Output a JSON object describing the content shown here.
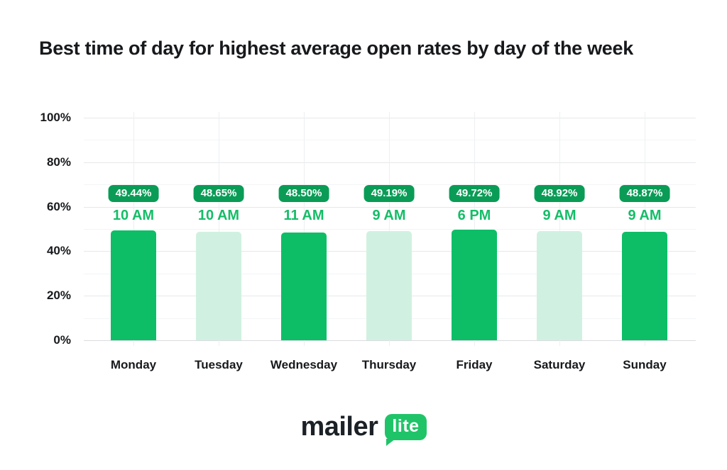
{
  "page": {
    "title": "Best time of day for highest average open rates by day of the week"
  },
  "chart_data": {
    "type": "bar",
    "title": "Best time of day for highest average open rates by day of the week",
    "categories": [
      "Monday",
      "Tuesday",
      "Wednesday",
      "Thursday",
      "Friday",
      "Saturday",
      "Sunday"
    ],
    "series": [
      {
        "name": "Average open rate",
        "values": [
          49.44,
          48.65,
          48.5,
          49.19,
          49.72,
          48.92,
          48.87
        ],
        "labels": [
          "49.44%",
          "48.65%",
          "48.50%",
          "49.19%",
          "49.72%",
          "48.92%",
          "48.87%"
        ]
      }
    ],
    "point_annotations": [
      "10 AM",
      "10 AM",
      "11 AM",
      "9 AM",
      "6 PM",
      "9 AM",
      "9 AM"
    ],
    "bar_styles": [
      "solid",
      "tint",
      "solid",
      "tint",
      "solid",
      "tint",
      "solid"
    ],
    "xlabel": "",
    "ylabel": "",
    "ylim": [
      0,
      100
    ],
    "ytick_labels_top_to_bottom": [
      "100%",
      "80%",
      "60%",
      "40%",
      "20%",
      "0%"
    ],
    "grid": "horizontal major every 20% with minor every 10%; faint vertical line at each category center",
    "legend": "none",
    "colors": {
      "bar_solid": "#0dbe67",
      "bar_tint": "#d0f1e1",
      "badge_bg": "#0a9c56",
      "badge_text": "#ffffff",
      "time_label": "#15bd68",
      "axis_text": "#17191c",
      "grid_major": "#e6e8eb",
      "grid_minor": "#f3f4f6",
      "grid_vertical": "#edeff1",
      "axis_line": "#d9dcdf",
      "logo_bubble": "#1fc468"
    }
  },
  "footer": {
    "logo_text": "mailer",
    "logo_badge_text": "lite"
  }
}
